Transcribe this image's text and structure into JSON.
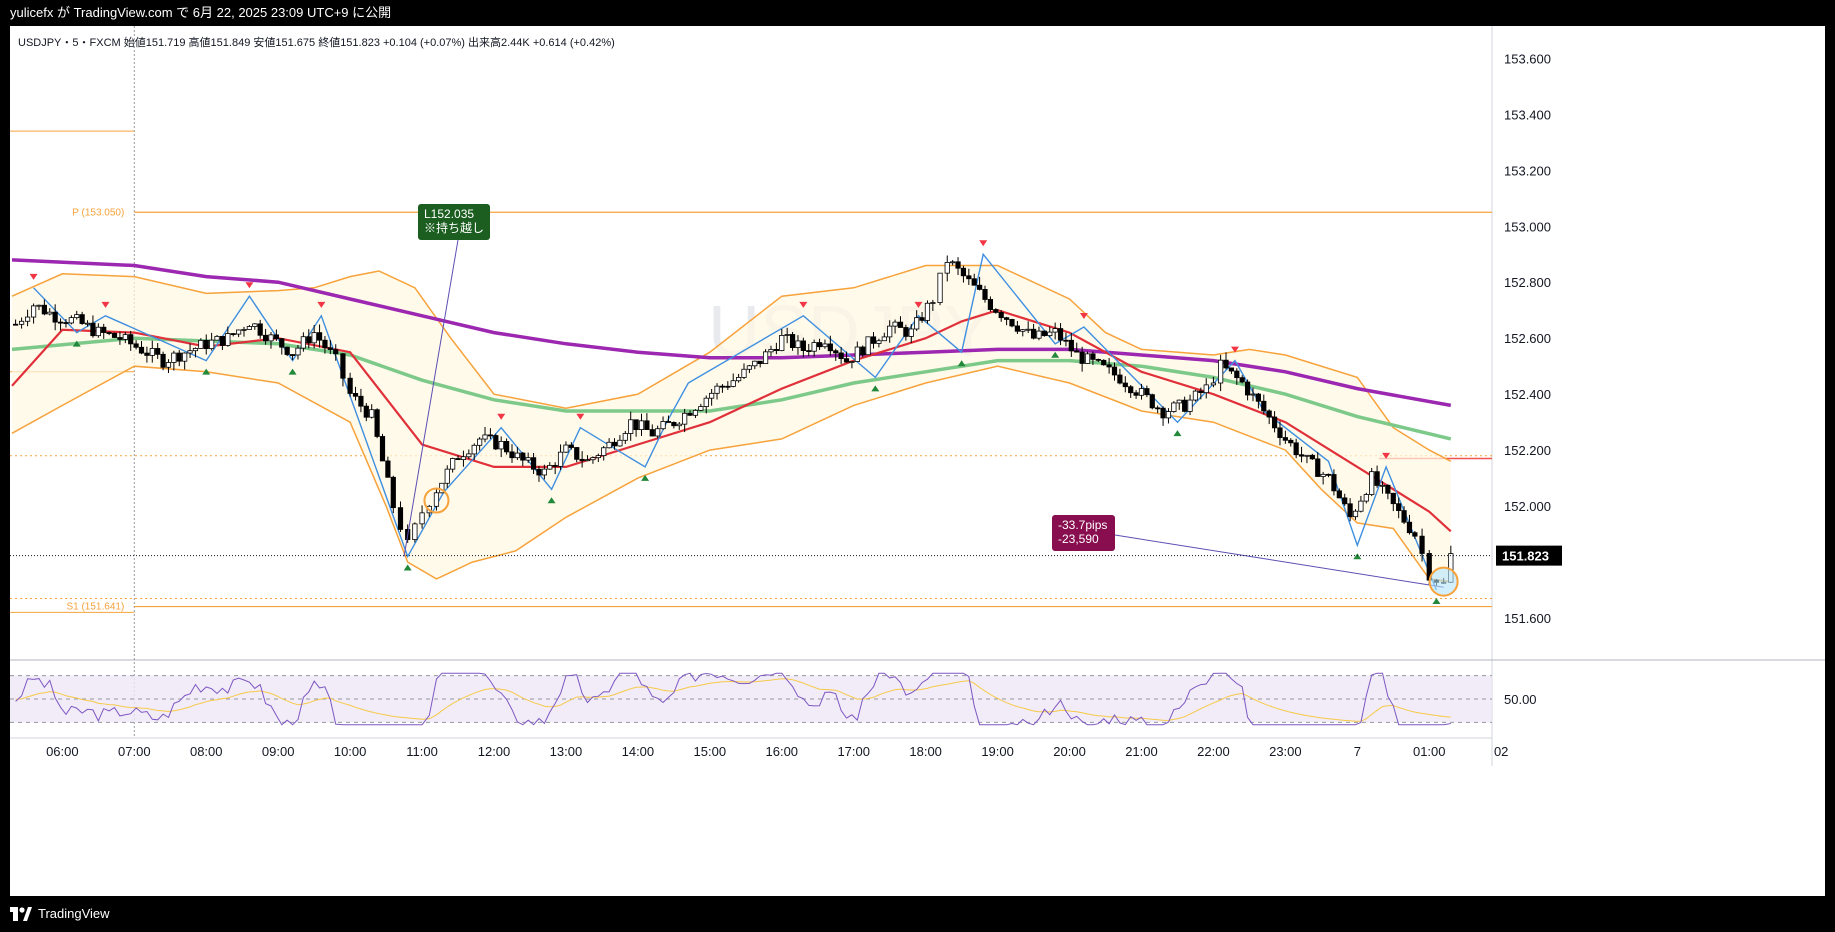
{
  "header": {
    "publish_line": "yulicefx が TradingView.com で 6月 22, 2025 23:09 UTC+9 に公開"
  },
  "legend": {
    "text": "USDJPY・5・FXCM  始値151.719  高値151.849  安値151.675  終値151.823  +0.104 (+0.07%)  出来高2.44K  +0.614 (+0.42%)"
  },
  "watermark": "USDJPY",
  "footer": {
    "brand": "TradingView"
  },
  "colors": {
    "up": "#ffffff",
    "down": "#000000",
    "pivot_line": "#f7a23b",
    "ema_fast": "#e0303a",
    "ema_mid": "#7dc98a",
    "ema_slow": "#9c27b0",
    "bb": "#f7a23b",
    "zigzag": "#3f8fe0",
    "note_green": "#1b5e20",
    "note_purple": "#880e4f",
    "rsi": "#7e57c2"
  },
  "chart_data": {
    "type": "candlestick",
    "symbol": "USDJPY",
    "interval": "5",
    "source": "FXCM",
    "x_ticks": [
      "06:00",
      "07:00",
      "08:00",
      "09:00",
      "10:00",
      "11:00",
      "12:00",
      "13:00",
      "14:00",
      "15:00",
      "16:00",
      "17:00",
      "18:00",
      "19:00",
      "20:00",
      "21:00",
      "22:00",
      "23:00",
      "7",
      "01:00",
      "02"
    ],
    "x_range_hours": [
      5.3,
      25.9
    ],
    "y_ticks": [
      "153.600",
      "153.400",
      "153.200",
      "153.000",
      "152.800",
      "152.600",
      "152.400",
      "152.200",
      "152.000",
      "151.600"
    ],
    "ylim": [
      151.45,
      153.68
    ],
    "last_price": {
      "label": "151.823",
      "value": 151.823
    },
    "levels": [
      {
        "label": "P (153.050)",
        "value": 153.05
      },
      {
        "label": "S1 (151.641)",
        "value": 151.641
      }
    ],
    "series_close": [
      [
        5.35,
        152.65
      ],
      [
        5.6,
        152.72
      ],
      [
        5.9,
        152.68
      ],
      [
        6.2,
        152.66
      ],
      [
        6.5,
        152.62
      ],
      [
        6.8,
        152.6
      ],
      [
        7.1,
        152.56
      ],
      [
        7.4,
        152.52
      ],
      [
        7.7,
        152.55
      ],
      [
        8.0,
        152.58
      ],
      [
        8.3,
        152.6
      ],
      [
        8.6,
        152.66
      ],
      [
        8.9,
        152.6
      ],
      [
        9.2,
        152.55
      ],
      [
        9.5,
        152.62
      ],
      [
        9.8,
        152.52
      ],
      [
        10.0,
        152.4
      ],
      [
        10.3,
        152.32
      ],
      [
        10.6,
        152.0
      ],
      [
        10.8,
        151.86
      ],
      [
        11.0,
        151.98
      ],
      [
        11.2,
        152.06
      ],
      [
        11.5,
        152.18
      ],
      [
        11.8,
        152.24
      ],
      [
        12.1,
        152.22
      ],
      [
        12.4,
        152.16
      ],
      [
        12.7,
        152.12
      ],
      [
        13.0,
        152.2
      ],
      [
        13.3,
        152.16
      ],
      [
        13.6,
        152.22
      ],
      [
        13.9,
        152.3
      ],
      [
        14.2,
        152.26
      ],
      [
        14.5,
        152.3
      ],
      [
        14.8,
        152.36
      ],
      [
        15.1,
        152.42
      ],
      [
        15.4,
        152.46
      ],
      [
        15.7,
        152.52
      ],
      [
        16.0,
        152.6
      ],
      [
        16.3,
        152.56
      ],
      [
        16.6,
        152.6
      ],
      [
        16.9,
        152.52
      ],
      [
        17.2,
        152.58
      ],
      [
        17.5,
        152.64
      ],
      [
        17.8,
        152.62
      ],
      [
        18.1,
        152.74
      ],
      [
        18.3,
        152.88
      ],
      [
        18.6,
        152.8
      ],
      [
        18.9,
        152.72
      ],
      [
        19.2,
        152.66
      ],
      [
        19.5,
        152.6
      ],
      [
        19.8,
        152.62
      ],
      [
        20.1,
        152.54
      ],
      [
        20.4,
        152.5
      ],
      [
        20.7,
        152.46
      ],
      [
        21.0,
        152.4
      ],
      [
        21.3,
        152.34
      ],
      [
        21.6,
        152.36
      ],
      [
        21.9,
        152.42
      ],
      [
        22.1,
        152.5
      ],
      [
        22.4,
        152.44
      ],
      [
        22.7,
        152.34
      ],
      [
        23.0,
        152.24
      ],
      [
        23.3,
        152.16
      ],
      [
        23.6,
        152.1
      ],
      [
        23.9,
        151.96
      ],
      [
        24.2,
        152.1
      ],
      [
        24.5,
        152.0
      ],
      [
        24.8,
        151.9
      ],
      [
        25.0,
        151.76
      ],
      [
        25.2,
        151.72
      ],
      [
        25.3,
        151.823
      ]
    ],
    "ema_fast": [
      [
        5.3,
        152.43
      ],
      [
        6.0,
        152.63
      ],
      [
        7.0,
        152.62
      ],
      [
        8.0,
        152.57
      ],
      [
        9.0,
        152.6
      ],
      [
        10.0,
        152.55
      ],
      [
        11.0,
        152.22
      ],
      [
        12.0,
        152.14
      ],
      [
        13.0,
        152.14
      ],
      [
        14.0,
        152.22
      ],
      [
        15.0,
        152.3
      ],
      [
        16.0,
        152.42
      ],
      [
        17.0,
        152.52
      ],
      [
        18.0,
        152.6
      ],
      [
        18.5,
        152.66
      ],
      [
        19.0,
        152.7
      ],
      [
        20.0,
        152.62
      ],
      [
        21.0,
        152.48
      ],
      [
        22.0,
        152.4
      ],
      [
        23.0,
        152.3
      ],
      [
        24.0,
        152.14
      ],
      [
        25.0,
        151.98
      ],
      [
        25.3,
        151.91
      ]
    ],
    "ema_mid": [
      [
        5.3,
        152.56
      ],
      [
        7.0,
        152.6
      ],
      [
        9.0,
        152.58
      ],
      [
        10.0,
        152.54
      ],
      [
        11.0,
        152.45
      ],
      [
        12.0,
        152.38
      ],
      [
        13.0,
        152.34
      ],
      [
        14.0,
        152.34
      ],
      [
        15.0,
        152.34
      ],
      [
        16.0,
        152.38
      ],
      [
        17.0,
        152.44
      ],
      [
        18.0,
        152.48
      ],
      [
        19.0,
        152.52
      ],
      [
        20.0,
        152.52
      ],
      [
        21.0,
        152.5
      ],
      [
        22.0,
        152.46
      ],
      [
        23.0,
        152.4
      ],
      [
        24.0,
        152.32
      ],
      [
        25.3,
        152.24
      ]
    ],
    "ema_slow": [
      [
        5.3,
        152.88
      ],
      [
        7.0,
        152.86
      ],
      [
        8.0,
        152.82
      ],
      [
        9.0,
        152.8
      ],
      [
        10.0,
        152.74
      ],
      [
        11.0,
        152.68
      ],
      [
        12.0,
        152.62
      ],
      [
        13.0,
        152.58
      ],
      [
        14.0,
        152.55
      ],
      [
        15.0,
        152.53
      ],
      [
        16.0,
        152.53
      ],
      [
        17.0,
        152.54
      ],
      [
        18.0,
        152.55
      ],
      [
        19.0,
        152.56
      ],
      [
        20.0,
        152.56
      ],
      [
        21.0,
        152.54
      ],
      [
        22.0,
        152.52
      ],
      [
        23.0,
        152.48
      ],
      [
        24.0,
        152.42
      ],
      [
        25.3,
        152.36
      ]
    ],
    "bb_upper": [
      [
        5.3,
        152.75
      ],
      [
        6.0,
        152.83
      ],
      [
        7.0,
        152.82
      ],
      [
        8.0,
        152.76
      ],
      [
        9.0,
        152.77
      ],
      [
        9.5,
        152.78
      ],
      [
        10.0,
        152.82
      ],
      [
        10.4,
        152.84
      ],
      [
        10.9,
        152.78
      ],
      [
        11.4,
        152.6
      ],
      [
        12.0,
        152.4
      ],
      [
        13.0,
        152.35
      ],
      [
        14.0,
        152.4
      ],
      [
        15.0,
        152.55
      ],
      [
        16.0,
        152.75
      ],
      [
        17.0,
        152.78
      ],
      [
        18.0,
        152.86
      ],
      [
        18.5,
        152.86
      ],
      [
        19.0,
        152.86
      ],
      [
        20.0,
        152.74
      ],
      [
        20.5,
        152.62
      ],
      [
        21.0,
        152.56
      ],
      [
        22.0,
        152.54
      ],
      [
        22.5,
        152.56
      ],
      [
        23.0,
        152.54
      ],
      [
        24.0,
        152.46
      ],
      [
        24.5,
        152.28
      ],
      [
        25.0,
        152.2
      ],
      [
        25.3,
        152.16
      ]
    ],
    "bb_lower": [
      [
        5.3,
        152.26
      ],
      [
        6.0,
        152.36
      ],
      [
        7.0,
        152.5
      ],
      [
        8.0,
        152.48
      ],
      [
        9.0,
        152.44
      ],
      [
        10.0,
        152.3
      ],
      [
        10.5,
        152.0
      ],
      [
        10.8,
        151.8
      ],
      [
        11.2,
        151.74
      ],
      [
        11.7,
        151.8
      ],
      [
        12.3,
        151.84
      ],
      [
        13.0,
        151.96
      ],
      [
        14.0,
        152.1
      ],
      [
        15.0,
        152.2
      ],
      [
        16.0,
        152.24
      ],
      [
        17.0,
        152.36
      ],
      [
        18.0,
        152.44
      ],
      [
        19.0,
        152.5
      ],
      [
        20.0,
        152.44
      ],
      [
        21.0,
        152.34
      ],
      [
        22.0,
        152.3
      ],
      [
        23.0,
        152.2
      ],
      [
        23.5,
        152.06
      ],
      [
        24.0,
        151.94
      ],
      [
        24.5,
        151.92
      ],
      [
        25.0,
        151.74
      ],
      [
        25.3,
        151.73
      ]
    ],
    "zigzag": [
      [
        5.6,
        152.78
      ],
      [
        6.2,
        152.62
      ],
      [
        6.6,
        152.68
      ],
      [
        8.0,
        152.52
      ],
      [
        8.6,
        152.75
      ],
      [
        9.2,
        152.52
      ],
      [
        9.6,
        152.68
      ],
      [
        10.8,
        151.82
      ],
      [
        11.3,
        152.05
      ],
      [
        12.1,
        152.28
      ],
      [
        12.8,
        152.06
      ],
      [
        13.2,
        152.28
      ],
      [
        14.1,
        152.14
      ],
      [
        14.4,
        152.3
      ],
      [
        14.7,
        152.44
      ],
      [
        16.3,
        152.68
      ],
      [
        17.3,
        152.46
      ],
      [
        17.9,
        152.68
      ],
      [
        18.5,
        152.55
      ],
      [
        18.8,
        152.9
      ],
      [
        19.8,
        152.58
      ],
      [
        20.2,
        152.64
      ],
      [
        21.5,
        152.3
      ],
      [
        22.3,
        152.52
      ],
      [
        22.7,
        152.34
      ],
      [
        23.6,
        152.16
      ],
      [
        24.0,
        151.86
      ],
      [
        24.4,
        152.14
      ],
      [
        25.1,
        151.7
      ]
    ],
    "notes": [
      {
        "lines": [
          "L152.035",
          "※持ち越し"
        ],
        "color": "green"
      },
      {
        "lines": [
          "-33.7pips",
          "-23,590"
        ],
        "color": "purple"
      }
    ],
    "rsi": {
      "tick": "50.00",
      "ylim": [
        20,
        80
      ],
      "bands": [
        70,
        50,
        30
      ]
    }
  }
}
